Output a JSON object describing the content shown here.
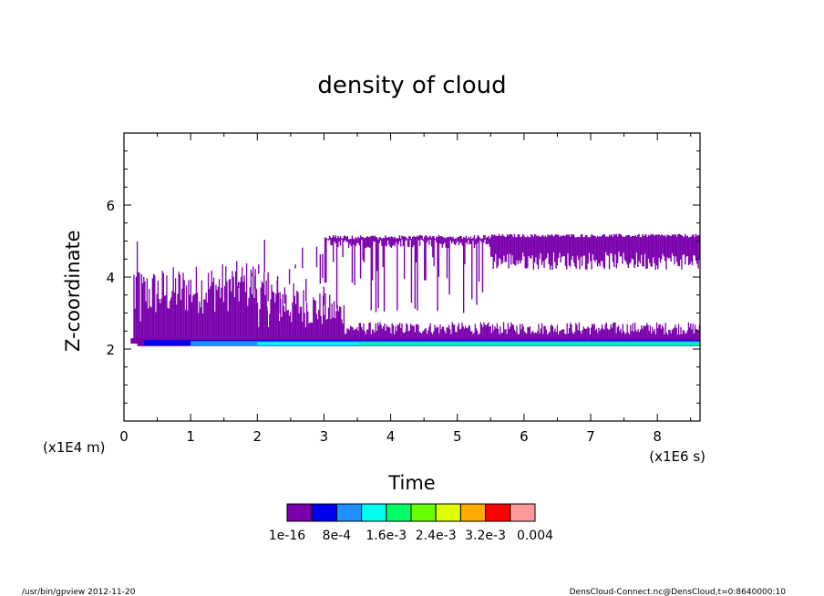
{
  "chart_data": {
    "type": "heatmap",
    "title": "density of cloud",
    "xlabel": "Time",
    "ylabel": "Z-coordinate",
    "x_unit_label": "(x1E6 s)",
    "y_unit_label": "(x1E4 m)",
    "xlim": [
      0,
      8.64
    ],
    "ylim": [
      0,
      8
    ],
    "x_ticks": [
      "0",
      "1",
      "2",
      "3",
      "4",
      "5",
      "6",
      "7",
      "8"
    ],
    "y_ticks": [
      "2",
      "4",
      "6"
    ],
    "colorbar": {
      "colors": [
        "#7a00ac",
        "#0000ee",
        "#1e90ff",
        "#00ffee",
        "#00ff66",
        "#66ff00",
        "#ddff00",
        "#ffaa00",
        "#ff0000",
        "#ff9999"
      ],
      "labels": [
        "1e-16",
        "8e-4",
        "1.6e-3",
        "2.4e-3",
        "3.2e-3",
        "0.004"
      ]
    },
    "regions": [
      {
        "level": 0,
        "description": "spiky cloud field",
        "x": [
          0.15,
          8.64
        ],
        "z": [
          2.0,
          4.2
        ]
      },
      {
        "level": 0,
        "description": "upper cloud layer",
        "x": [
          3.0,
          8.64
        ],
        "z": [
          4.3,
          5.2
        ]
      },
      {
        "level": 1,
        "description": "band",
        "x": [
          0.3,
          8.64
        ],
        "z": [
          2.1,
          2.3
        ]
      },
      {
        "level": 2,
        "description": "band",
        "x": [
          1.0,
          8.64
        ],
        "z": [
          2.05,
          2.25
        ]
      },
      {
        "level": 3,
        "description": "band",
        "x": [
          2.0,
          8.64
        ],
        "z": [
          2.1,
          2.2
        ]
      }
    ]
  },
  "footer": {
    "left": "/usr/bin/gpview   2012-11-20",
    "right": "DensCloud-Connect.nc@DensCloud,t=0:8640000:10"
  }
}
